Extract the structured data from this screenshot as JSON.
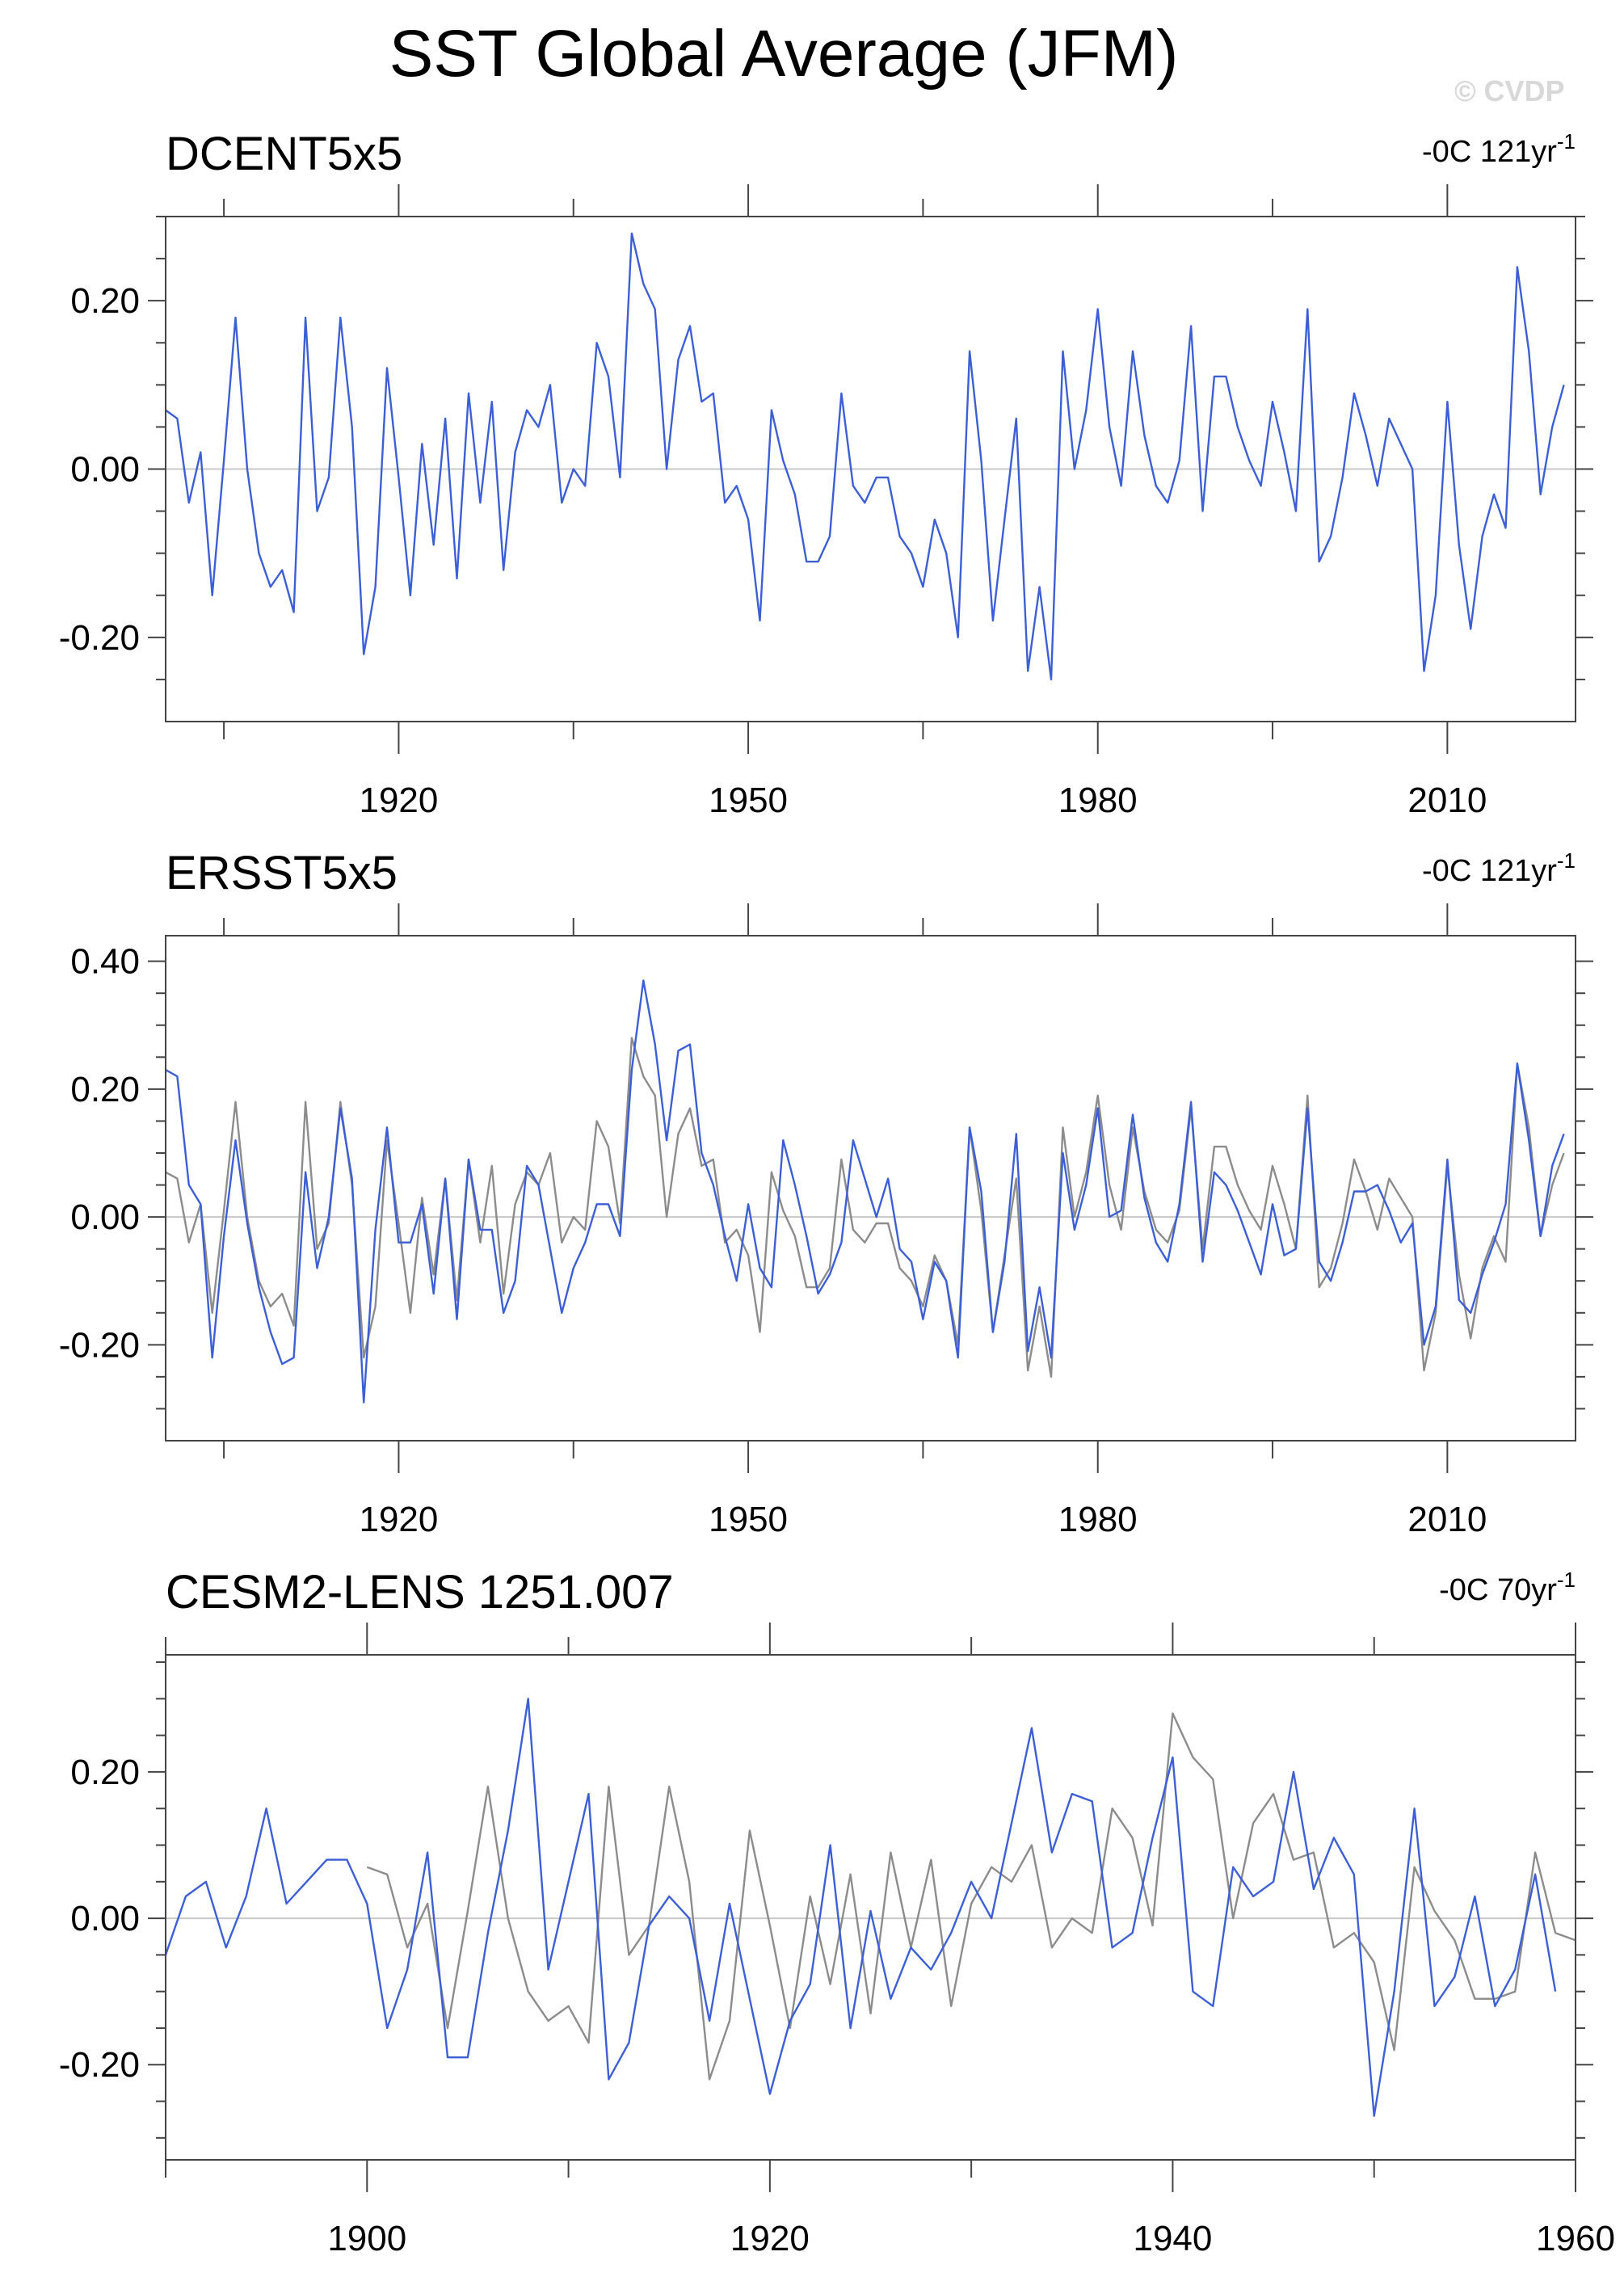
{
  "title": "SST Global Average (JFM)",
  "watermark": "© CVDP",
  "colors": {
    "primary": "#3c5fd6",
    "reference": "#8c8c8c",
    "zero_line": "#c8c8c8",
    "frame": "#444444"
  },
  "chart_data": [
    {
      "type": "line",
      "label": "DCENT5x5",
      "trend_text": "-0C 121yr",
      "trend_unit_exp": "-1",
      "x_ticks": [
        1920,
        1950,
        1980,
        2010
      ],
      "x_range": [
        1900,
        2021
      ],
      "y_ticks": [
        -0.2,
        0.0,
        0.2
      ],
      "y_tick_labels": [
        "-0.20",
        "0.00",
        "0.20"
      ],
      "y_range": [
        -0.3,
        0.3
      ],
      "x_start": 1900,
      "series": [
        {
          "color": "#3c5fd6",
          "values": [
            0.07,
            0.06,
            -0.04,
            0.02,
            -0.15,
            0.01,
            0.18,
            0.0,
            -0.1,
            -0.14,
            -0.12,
            -0.17,
            0.18,
            -0.05,
            -0.01,
            0.18,
            0.05,
            -0.22,
            -0.14,
            0.12,
            -0.01,
            -0.15,
            0.03,
            -0.09,
            0.06,
            -0.13,
            0.09,
            -0.04,
            0.08,
            -0.12,
            0.02,
            0.07,
            0.05,
            0.1,
            -0.04,
            0.0,
            -0.02,
            0.15,
            0.11,
            -0.01,
            0.28,
            0.22,
            0.19,
            0.0,
            0.13,
            0.17,
            0.08,
            0.09,
            -0.04,
            -0.02,
            -0.06,
            -0.18,
            0.07,
            0.01,
            -0.03,
            -0.11,
            -0.11,
            -0.08,
            0.09,
            -0.02,
            -0.04,
            -0.01,
            -0.01,
            -0.08,
            -0.1,
            -0.14,
            -0.06,
            -0.1,
            -0.2,
            0.14,
            0.01,
            -0.18,
            -0.06,
            0.06,
            -0.24,
            -0.14,
            -0.25,
            0.14,
            0.0,
            0.07,
            0.19,
            0.05,
            -0.02,
            0.14,
            0.04,
            -0.02,
            -0.04,
            0.01,
            0.17,
            -0.05,
            0.11,
            0.11,
            0.05,
            0.01,
            -0.02,
            0.08,
            0.02,
            -0.05,
            0.19,
            -0.11,
            -0.08,
            -0.01,
            0.09,
            0.04,
            -0.02,
            0.06,
            0.03,
            0.0,
            -0.24,
            -0.15,
            0.08,
            -0.09,
            -0.19,
            -0.08,
            -0.03,
            -0.07,
            0.24,
            0.14,
            -0.03,
            0.05,
            0.1
          ]
        }
      ]
    },
    {
      "type": "line",
      "label": "ERSST5x5",
      "trend_text": "-0C 121yr",
      "trend_unit_exp": "-1",
      "x_ticks": [
        1920,
        1950,
        1980,
        2010
      ],
      "x_range": [
        1900,
        2021
      ],
      "y_ticks": [
        -0.2,
        0.0,
        0.2,
        0.4
      ],
      "y_tick_labels": [
        "-0.20",
        "0.00",
        "0.20",
        "0.40"
      ],
      "y_range": [
        -0.35,
        0.44
      ],
      "x_start": 1900,
      "series": [
        {
          "color": "#8c8c8c",
          "values": [
            0.07,
            0.06,
            -0.04,
            0.02,
            -0.15,
            0.01,
            0.18,
            0.0,
            -0.1,
            -0.14,
            -0.12,
            -0.17,
            0.18,
            -0.05,
            -0.01,
            0.18,
            0.05,
            -0.22,
            -0.14,
            0.12,
            -0.01,
            -0.15,
            0.03,
            -0.09,
            0.06,
            -0.13,
            0.09,
            -0.04,
            0.08,
            -0.12,
            0.02,
            0.07,
            0.05,
            0.1,
            -0.04,
            0.0,
            -0.02,
            0.15,
            0.11,
            -0.01,
            0.28,
            0.22,
            0.19,
            0.0,
            0.13,
            0.17,
            0.08,
            0.09,
            -0.04,
            -0.02,
            -0.06,
            -0.18,
            0.07,
            0.01,
            -0.03,
            -0.11,
            -0.11,
            -0.08,
            0.09,
            -0.02,
            -0.04,
            -0.01,
            -0.01,
            -0.08,
            -0.1,
            -0.14,
            -0.06,
            -0.1,
            -0.2,
            0.14,
            0.01,
            -0.18,
            -0.06,
            0.06,
            -0.24,
            -0.14,
            -0.25,
            0.14,
            0.0,
            0.07,
            0.19,
            0.05,
            -0.02,
            0.14,
            0.04,
            -0.02,
            -0.04,
            0.01,
            0.17,
            -0.05,
            0.11,
            0.11,
            0.05,
            0.01,
            -0.02,
            0.08,
            0.02,
            -0.05,
            0.19,
            -0.11,
            -0.08,
            -0.01,
            0.09,
            0.04,
            -0.02,
            0.06,
            0.03,
            0.0,
            -0.24,
            -0.15,
            0.08,
            -0.09,
            -0.19,
            -0.08,
            -0.03,
            -0.07,
            0.24,
            0.14,
            -0.03,
            0.05,
            0.1
          ]
        },
        {
          "color": "#3c5fd6",
          "values": [
            0.23,
            0.22,
            0.05,
            0.02,
            -0.22,
            -0.03,
            0.12,
            -0.01,
            -0.11,
            -0.18,
            -0.23,
            -0.22,
            0.07,
            -0.08,
            0.0,
            0.17,
            0.06,
            -0.29,
            -0.02,
            0.14,
            -0.04,
            -0.04,
            0.02,
            -0.12,
            0.06,
            -0.16,
            0.09,
            -0.02,
            -0.02,
            -0.15,
            -0.1,
            0.08,
            0.05,
            -0.05,
            -0.15,
            -0.08,
            -0.04,
            0.02,
            0.02,
            -0.03,
            0.23,
            0.37,
            0.27,
            0.12,
            0.26,
            0.27,
            0.1,
            0.05,
            -0.03,
            -0.1,
            0.02,
            -0.08,
            -0.11,
            0.12,
            0.05,
            -0.03,
            -0.12,
            -0.09,
            -0.04,
            0.12,
            0.06,
            0.0,
            0.06,
            -0.05,
            -0.07,
            -0.16,
            -0.07,
            -0.1,
            -0.22,
            0.14,
            0.04,
            -0.18,
            -0.07,
            0.13,
            -0.21,
            -0.11,
            -0.22,
            0.1,
            -0.02,
            0.05,
            0.17,
            0.0,
            0.01,
            0.16,
            0.03,
            -0.04,
            -0.07,
            0.02,
            0.18,
            -0.07,
            0.07,
            0.05,
            0.01,
            -0.04,
            -0.09,
            0.02,
            -0.06,
            -0.05,
            0.17,
            -0.07,
            -0.1,
            -0.04,
            0.04,
            0.04,
            0.05,
            0.01,
            -0.04,
            -0.01,
            -0.2,
            -0.14,
            0.09,
            -0.13,
            -0.15,
            -0.09,
            -0.04,
            0.02,
            0.24,
            0.12,
            -0.03,
            0.08,
            0.13
          ]
        }
      ]
    },
    {
      "type": "line",
      "label": "CESM2-LENS 1251.007",
      "trend_text": "-0C 70yr",
      "trend_unit_exp": "-1",
      "x_ticks": [
        1900,
        1920,
        1940,
        1960
      ],
      "x_range": [
        1890,
        1960
      ],
      "y_ticks": [
        -0.2,
        0.0,
        0.2
      ],
      "y_tick_labels": [
        "-0.20",
        "0.00",
        "0.20"
      ],
      "y_range": [
        -0.33,
        0.36
      ],
      "series": [
        {
          "color": "#8c8c8c",
          "x_start": 1900,
          "values": [
            0.07,
            0.06,
            -0.04,
            0.02,
            -0.15,
            0.01,
            0.18,
            0.0,
            -0.1,
            -0.14,
            -0.12,
            -0.17,
            0.18,
            -0.05,
            -0.01,
            0.18,
            0.05,
            -0.22,
            -0.14,
            0.12,
            -0.01,
            -0.15,
            0.03,
            -0.09,
            0.06,
            -0.13,
            0.09,
            -0.04,
            0.08,
            -0.12,
            0.02,
            0.07,
            0.05,
            0.1,
            -0.04,
            0.0,
            -0.02,
            0.15,
            0.11,
            -0.01,
            0.28,
            0.22,
            0.19,
            0.0,
            0.13,
            0.17,
            0.08,
            0.09,
            -0.04,
            -0.02,
            -0.06,
            -0.18,
            0.07,
            0.01,
            -0.03,
            -0.11,
            -0.11,
            -0.1,
            0.09,
            -0.02,
            -0.03
          ]
        },
        {
          "color": "#3c5fd6",
          "x_start": 1890,
          "values": [
            -0.05,
            0.03,
            0.05,
            -0.04,
            0.03,
            0.15,
            0.02,
            0.05,
            0.08,
            0.08,
            0.02,
            -0.15,
            -0.07,
            0.09,
            -0.19,
            -0.19,
            -0.02,
            0.12,
            0.3,
            -0.07,
            0.05,
            0.17,
            -0.22,
            -0.17,
            -0.01,
            0.03,
            0.0,
            -0.14,
            0.02,
            -0.11,
            -0.24,
            -0.14,
            -0.09,
            0.1,
            -0.15,
            0.01,
            -0.11,
            -0.04,
            -0.07,
            -0.02,
            0.05,
            0.0,
            0.13,
            0.26,
            0.09,
            0.17,
            0.16,
            -0.04,
            -0.02,
            0.11,
            0.22,
            -0.1,
            -0.12,
            0.07,
            0.03,
            0.05,
            0.2,
            0.04,
            0.11,
            0.06,
            -0.27,
            -0.1,
            0.15,
            -0.12,
            -0.08,
            0.03,
            -0.12,
            -0.07,
            0.06,
            -0.1
          ]
        }
      ]
    }
  ]
}
